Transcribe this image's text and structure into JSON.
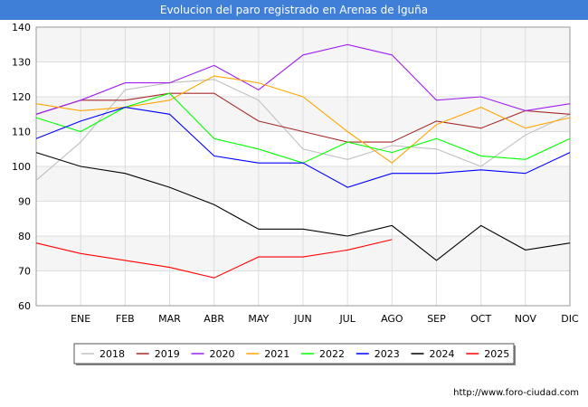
{
  "page": {
    "title": "Evolucion del paro registrado en Arenas de Iguña",
    "footer_url": "http://www.foro-ciudad.com"
  },
  "chart_data": {
    "type": "line",
    "title": "Evolucion del paro registrado en Arenas de Iguña",
    "xlabel": "",
    "ylabel": "",
    "categories": [
      "",
      "ENE",
      "FEB",
      "MAR",
      "ABR",
      "MAY",
      "JUN",
      "JUL",
      "AGO",
      "SEP",
      "OCT",
      "NOV",
      "DIC"
    ],
    "ylim": [
      60,
      140
    ],
    "yticks": [
      60,
      70,
      80,
      90,
      100,
      110,
      120,
      130,
      140
    ],
    "grid": true,
    "legend_position": "bottom",
    "series": [
      {
        "name": "2018",
        "color": "#c0c0c0",
        "values": [
          96,
          107,
          122,
          124,
          125,
          119,
          105,
          102,
          106,
          105,
          100,
          109,
          115
        ]
      },
      {
        "name": "2019",
        "color": "#a52a2a",
        "values": [
          115,
          119,
          119,
          121,
          121,
          113,
          110,
          107,
          107,
          113,
          111,
          116,
          115
        ]
      },
      {
        "name": "2020",
        "color": "#a020f0",
        "values": [
          115,
          119,
          124,
          124,
          129,
          122,
          132,
          135,
          132,
          119,
          120,
          116,
          118
        ]
      },
      {
        "name": "2021",
        "color": "#ffa500",
        "values": [
          118,
          116,
          117,
          119,
          126,
          124,
          120,
          110,
          101,
          112,
          117,
          111,
          114
        ]
      },
      {
        "name": "2022",
        "color": "#00ff00",
        "values": [
          114,
          110,
          117,
          121,
          108,
          105,
          101,
          107,
          104,
          108,
          103,
          102,
          108
        ]
      },
      {
        "name": "2023",
        "color": "#0000ff",
        "values": [
          108,
          113,
          117,
          115,
          103,
          101,
          101,
          94,
          98,
          98,
          99,
          98,
          104
        ]
      },
      {
        "name": "2024",
        "color": "#000000",
        "values": [
          104,
          100,
          98,
          94,
          89,
          82,
          82,
          80,
          83,
          73,
          83,
          76,
          78
        ]
      },
      {
        "name": "2025",
        "color": "#ff0000",
        "values": [
          78,
          75,
          73,
          71,
          68,
          74,
          74,
          76,
          79,
          null,
          null,
          null,
          null
        ]
      }
    ]
  }
}
